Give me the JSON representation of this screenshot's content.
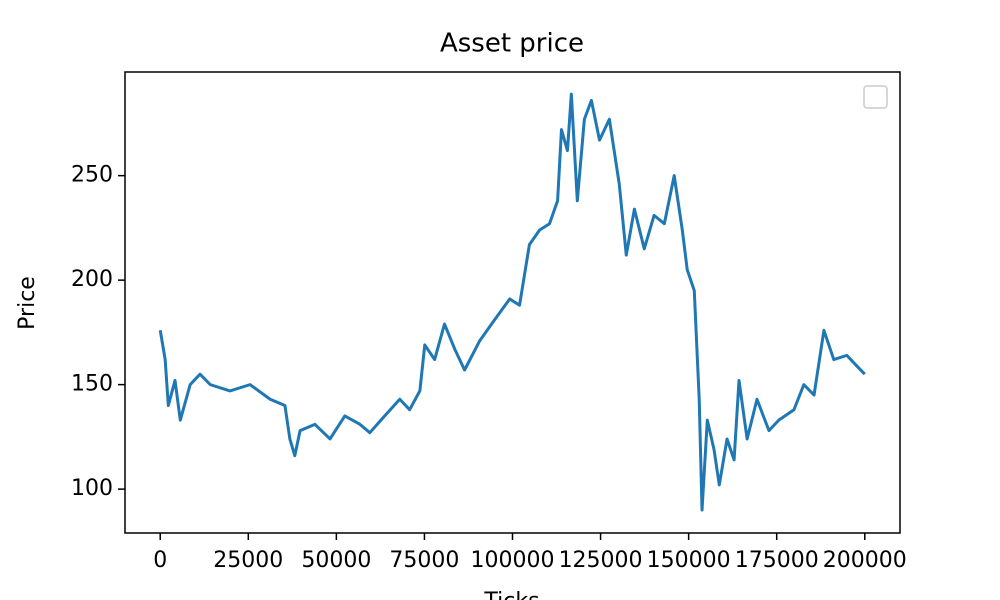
{
  "chart_data": {
    "type": "line",
    "title": "Asset price",
    "x_label": "Ticks",
    "y_label": "Price",
    "x": [
      0,
      1400,
      2300,
      4200,
      5700,
      8500,
      11300,
      14200,
      19800,
      25500,
      31200,
      35400,
      36800,
      38200,
      39700,
      43900,
      48200,
      52400,
      56700,
      59500,
      63700,
      68000,
      70800,
      73700,
      75100,
      77900,
      80700,
      83600,
      86400,
      90700,
      94900,
      99200,
      102000,
      104800,
      107700,
      110500,
      112800,
      113900,
      115600,
      116700,
      118400,
      120400,
      122400,
      124700,
      127500,
      130300,
      132300,
      134600,
      137400,
      140200,
      143100,
      145900,
      148200,
      149600,
      151600,
      153000,
      153800,
      155300,
      157200,
      158700,
      160900,
      162900,
      164300,
      166600,
      169400,
      172800,
      175600,
      179900,
      182700,
      185600,
      188400,
      191200,
      194900,
      197700,
      200000
    ],
    "series": [
      {
        "color": "#1f77b4",
        "values": [
          176,
          162,
          140,
          152,
          133,
          150,
          155,
          150,
          147,
          150,
          143,
          140,
          124,
          116,
          128,
          131,
          124,
          135,
          131,
          127,
          135,
          143,
          138,
          147,
          169,
          162,
          179,
          167,
          157,
          171,
          181,
          191,
          188,
          217,
          224,
          227,
          238,
          272,
          262,
          289,
          238,
          277,
          286,
          267,
          277,
          246,
          212,
          234,
          215,
          231,
          227,
          250,
          224,
          205,
          195,
          143,
          90,
          133,
          119,
          102,
          124,
          114,
          152,
          124,
          143,
          128,
          133,
          138,
          150,
          145,
          176,
          162,
          164,
          159,
          155
        ]
      }
    ],
    "xlim": [
      -10000,
      210000
    ],
    "ylim": [
      79,
      299.6
    ],
    "xticks": [
      0,
      25000,
      50000,
      75000,
      100000,
      125000,
      150000,
      175000,
      200000
    ],
    "yticks": [
      100,
      150,
      200,
      250
    ]
  }
}
